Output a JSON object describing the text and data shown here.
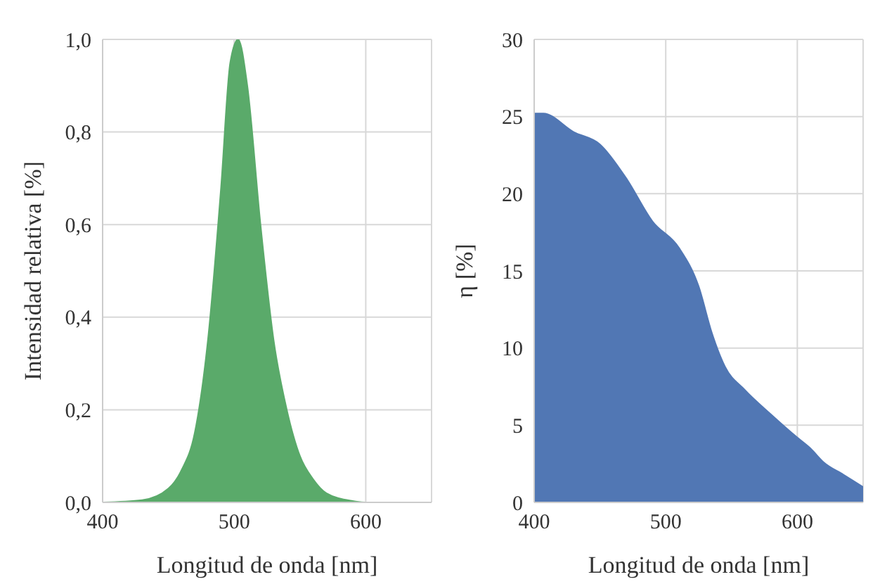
{
  "chart_data": [
    {
      "type": "area",
      "xlabel": "Longitud de onda [nm]",
      "ylabel": "Intensidad relativa [%]",
      "x": [
        400,
        430,
        450,
        460,
        470,
        480,
        490,
        497,
        503,
        510,
        520,
        530,
        540,
        550,
        560,
        570,
        590,
        600,
        650
      ],
      "series": [
        {
          "color": "#5aaa6a",
          "values": [
            0,
            0.005,
            0.03,
            0.07,
            0.15,
            0.35,
            0.68,
            0.95,
            1.0,
            0.9,
            0.6,
            0.35,
            0.2,
            0.1,
            0.05,
            0.02,
            0.003,
            0,
            0
          ]
        }
      ],
      "xlim": [
        400,
        650
      ],
      "xticks": [
        400,
        500,
        600
      ],
      "ylim": [
        0,
        1
      ],
      "yticks": [
        {
          "value": 0,
          "label": "0,0"
        },
        {
          "value": 0.2,
          "label": "0,2"
        },
        {
          "value": 0.4,
          "label": "0,4"
        },
        {
          "value": 0.6,
          "label": "0,6"
        },
        {
          "value": 0.8,
          "label": "0,8"
        },
        {
          "value": 1,
          "label": "1,0"
        }
      ],
      "grid": true
    },
    {
      "type": "area",
      "xlabel": "Longitud de onda [nm]",
      "ylabel": "η [%]",
      "x": [
        400,
        407,
        430,
        450,
        470,
        490,
        510,
        525,
        535,
        545,
        560,
        580,
        600,
        610,
        620,
        635,
        650
      ],
      "series": [
        {
          "color": "#5177b4",
          "values": [
            25.2,
            25.2,
            24,
            23.2,
            21,
            18.2,
            16.5,
            14,
            11,
            8.8,
            7.3,
            5.7,
            4.2,
            3.5,
            2.6,
            1.8,
            1.0
          ]
        }
      ],
      "xlim": [
        400,
        650
      ],
      "xticks": [
        400,
        500,
        600
      ],
      "ylim": [
        0,
        30
      ],
      "yticks": [
        0,
        5,
        10,
        15,
        20,
        25,
        30
      ],
      "grid": true
    }
  ]
}
